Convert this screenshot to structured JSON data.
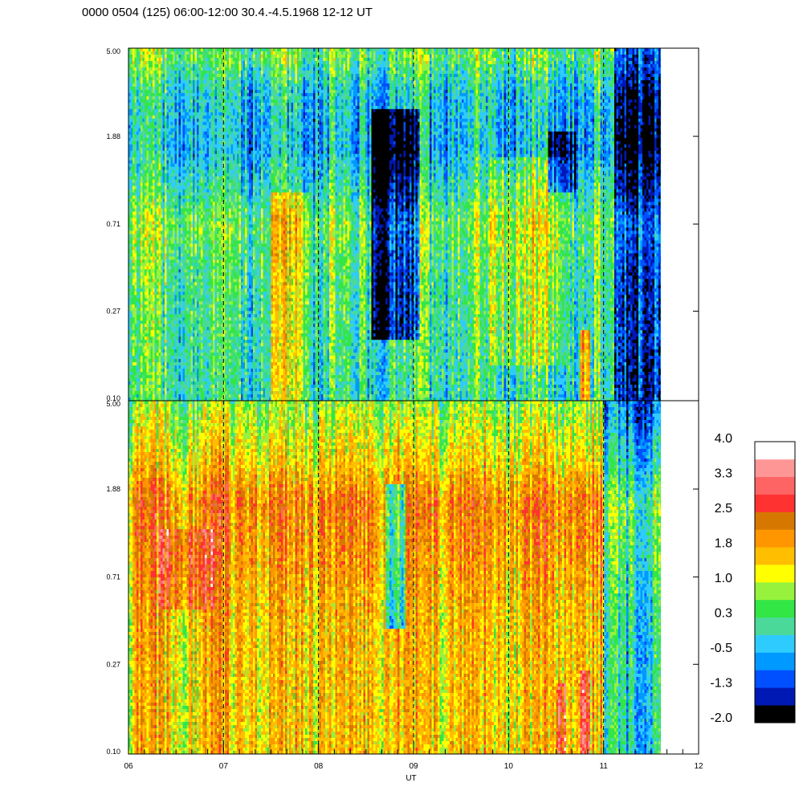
{
  "header": {
    "title": "0000 0504 (125) 06:00-12:00 30.4.-4.5.1968  12-12 UT"
  },
  "chart_data": {
    "type": "heatmap",
    "title": "0000 0504 (125) 06:00-12:00 30.4.-4.5.1968  12-12 UT",
    "xlabel": "UT",
    "ylabel": "",
    "x_ticks": [
      "06",
      "07",
      "08",
      "09",
      "10",
      "11",
      "12"
    ],
    "xlim": [
      6,
      12
    ],
    "data_end_x": 11.6,
    "y_scale": "log",
    "grid": "dashed vertical lines at each hour",
    "panels": [
      {
        "name": "",
        "ylim": [
          0.1,
          5.0
        ],
        "y_ticks": [
          "0.10",
          "0.27",
          "0.71",
          "1.88",
          "5.00"
        ],
        "y_tick_values": [
          0.1,
          0.27,
          0.71,
          1.88,
          5.0
        ],
        "base_level": 0.1,
        "profile": [
          [
            0.1,
            0.0
          ],
          [
            0.2,
            0.1
          ],
          [
            0.4,
            0.2
          ],
          [
            0.7,
            0.5
          ],
          [
            1.0,
            0.0
          ],
          [
            1.6,
            -0.5
          ],
          [
            3.0,
            -0.3
          ],
          [
            4.5,
            0.4
          ],
          [
            5.0,
            0.3
          ]
        ],
        "events": [
          {
            "x0": 7.5,
            "x1": 7.9,
            "y0": 0.1,
            "y1": 1.0,
            "delta": 0.9
          },
          {
            "x0": 8.55,
            "x1": 9.05,
            "y0": 0.2,
            "y1": 2.5,
            "delta": -1.6
          },
          {
            "x0": 9.8,
            "x1": 10.6,
            "y0": 0.15,
            "y1": 1.5,
            "delta": 0.6
          },
          {
            "x0": 10.4,
            "x1": 10.7,
            "y0": 1.0,
            "y1": 2.0,
            "delta": -1.0
          },
          {
            "x0": 10.75,
            "x1": 10.85,
            "y0": 0.1,
            "y1": 0.22,
            "delta": 1.9
          },
          {
            "x0": 11.1,
            "x1": 11.6,
            "y0": 0.1,
            "y1": 5.0,
            "delta": -1.2
          }
        ]
      },
      {
        "name": "",
        "ylim": [
          0.1,
          5.0
        ],
        "y_ticks": [
          "0.10",
          "0.27",
          "0.71",
          "1.88",
          "5.00"
        ],
        "y_tick_values": [
          0.1,
          0.27,
          0.71,
          1.88,
          5.0
        ],
        "base_level": 1.5,
        "profile": [
          [
            0.1,
            0.0
          ],
          [
            0.4,
            0.1
          ],
          [
            0.9,
            0.4
          ],
          [
            1.6,
            0.6
          ],
          [
            2.5,
            -0.1
          ],
          [
            4.0,
            -0.6
          ],
          [
            5.0,
            -0.8
          ]
        ],
        "events": [
          {
            "x0": 6.3,
            "x1": 6.9,
            "y0": 0.5,
            "y1": 1.2,
            "delta": 0.7
          },
          {
            "x0": 8.7,
            "x1": 8.9,
            "y0": 0.4,
            "y1": 2.0,
            "delta": -1.8
          },
          {
            "x0": 10.5,
            "x1": 10.6,
            "y0": 0.1,
            "y1": 0.22,
            "delta": 1.4
          },
          {
            "x0": 10.75,
            "x1": 10.85,
            "y0": 0.1,
            "y1": 0.25,
            "delta": 1.4
          },
          {
            "x0": 11.0,
            "x1": 11.6,
            "y0": 0.1,
            "y1": 5.0,
            "delta": -1.6
          }
        ]
      }
    ],
    "colorbar": {
      "tick_labels": [
        "4.0",
        "3.3",
        "2.5",
        "1.8",
        "1.0",
        "0.3",
        "-0.5",
        "-1.3",
        "-2.0"
      ],
      "min": -2.0,
      "max": 4.0,
      "colors": [
        "#000000",
        "#0018b4",
        "#0050ff",
        "#0099ff",
        "#2ecbff",
        "#4bd99a",
        "#32e646",
        "#96f23c",
        "#ffff00",
        "#ffbe00",
        "#ff9600",
        "#d67800",
        "#ff3232",
        "#ff6464",
        "#ff9696",
        "#ffffff"
      ]
    }
  }
}
